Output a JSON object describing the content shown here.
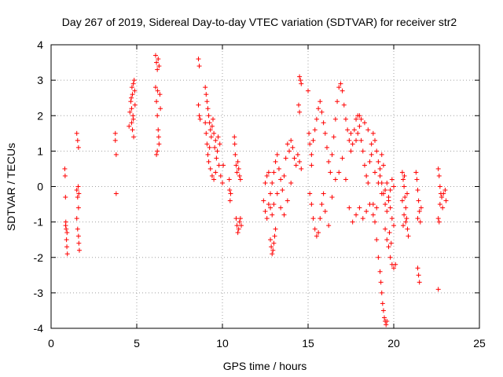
{
  "chart_data": {
    "type": "scatter",
    "title": "Day 267 of 2019, Sidereal Day-to-day VTEC variation (SDTVAR) for receiver str2",
    "xlabel": "GPS time / hours",
    "ylabel": "SDTVAR / TECUs",
    "xlim": [
      0,
      25
    ],
    "ylim": [
      -4,
      4
    ],
    "xticks": [
      "0",
      "5",
      "10",
      "15",
      "20",
      "25"
    ],
    "yticks": [
      "-4",
      "-3",
      "-2",
      "-1",
      "0",
      "1",
      "2",
      "3",
      "4"
    ],
    "grid": true,
    "marker": "+",
    "color": "#ff0000",
    "series": [
      {
        "name": "SDTVAR",
        "points": [
          [
            0.8,
            0.5
          ],
          [
            0.82,
            0.3
          ],
          [
            0.84,
            -0.3
          ],
          [
            0.86,
            -1.0
          ],
          [
            0.88,
            -1.2
          ],
          [
            0.9,
            -1.5
          ],
          [
            0.92,
            -1.7
          ],
          [
            0.95,
            -1.9
          ],
          [
            0.85,
            -1.1
          ],
          [
            0.93,
            -1.3
          ],
          [
            1.5,
            1.5
          ],
          [
            1.55,
            1.3
          ],
          [
            1.6,
            1.1
          ],
          [
            1.5,
            -0.1
          ],
          [
            1.55,
            -0.3
          ],
          [
            1.6,
            -0.6
          ],
          [
            1.5,
            -0.9
          ],
          [
            1.55,
            -1.2
          ],
          [
            1.6,
            -1.4
          ],
          [
            1.62,
            -1.6
          ],
          [
            1.65,
            -1.8
          ],
          [
            1.58,
            0.0
          ],
          [
            1.62,
            -0.2
          ],
          [
            3.75,
            1.5
          ],
          [
            3.75,
            1.3
          ],
          [
            3.8,
            0.9
          ],
          [
            3.8,
            -0.2
          ],
          [
            4.55,
            1.7
          ],
          [
            4.6,
            2.1
          ],
          [
            4.65,
            2.4
          ],
          [
            4.7,
            2.2
          ],
          [
            4.75,
            2.6
          ],
          [
            4.8,
            2.9
          ],
          [
            4.85,
            3.0
          ],
          [
            4.88,
            2.7
          ],
          [
            4.9,
            2.3
          ],
          [
            4.8,
            1.9
          ],
          [
            4.75,
            1.6
          ],
          [
            4.82,
            1.4
          ],
          [
            4.7,
            1.8
          ],
          [
            4.78,
            2.0
          ],
          [
            4.68,
            2.5
          ],
          [
            4.72,
            2.8
          ],
          [
            6.1,
            3.7
          ],
          [
            6.15,
            3.5
          ],
          [
            6.2,
            3.3
          ],
          [
            6.25,
            3.6
          ],
          [
            6.3,
            3.4
          ],
          [
            6.1,
            2.8
          ],
          [
            6.15,
            2.4
          ],
          [
            6.2,
            2.0
          ],
          [
            6.25,
            1.6
          ],
          [
            6.3,
            1.2
          ],
          [
            6.2,
            1.0
          ],
          [
            6.15,
            0.9
          ],
          [
            6.35,
            2.6
          ],
          [
            6.38,
            2.2
          ],
          [
            6.22,
            2.7
          ],
          [
            6.28,
            1.4
          ],
          [
            8.6,
            3.6
          ],
          [
            8.65,
            3.4
          ],
          [
            8.6,
            2.3
          ],
          [
            8.65,
            2.0
          ],
          [
            8.7,
            1.9
          ],
          [
            9.0,
            2.8
          ],
          [
            9.05,
            2.6
          ],
          [
            9.1,
            2.4
          ],
          [
            9.15,
            2.2
          ],
          [
            9.2,
            2.0
          ],
          [
            9.25,
            1.8
          ],
          [
            9.3,
            1.6
          ],
          [
            9.35,
            1.4
          ],
          [
            9.4,
            1.7
          ],
          [
            9.5,
            1.5
          ],
          [
            9.6,
            1.3
          ],
          [
            9.0,
            1.8
          ],
          [
            9.05,
            1.5
          ],
          [
            9.1,
            1.2
          ],
          [
            9.15,
            0.9
          ],
          [
            9.2,
            0.7
          ],
          [
            9.3,
            0.5
          ],
          [
            9.4,
            0.3
          ],
          [
            9.5,
            0.2
          ],
          [
            9.6,
            0.4
          ],
          [
            9.7,
            1.0
          ],
          [
            9.8,
            0.6
          ],
          [
            9.9,
            0.3
          ],
          [
            10.0,
            0.1
          ],
          [
            10.05,
            0.6
          ],
          [
            9.85,
            1.2
          ],
          [
            9.75,
            1.4
          ],
          [
            9.45,
            1.9
          ],
          [
            9.55,
            1.1
          ],
          [
            9.65,
            0.8
          ],
          [
            9.25,
            1.1
          ],
          [
            10.4,
            0.2
          ],
          [
            10.42,
            -0.1
          ],
          [
            10.45,
            -0.4
          ],
          [
            10.48,
            -0.2
          ],
          [
            10.7,
            1.4
          ],
          [
            10.72,
            1.2
          ],
          [
            10.75,
            0.9
          ],
          [
            10.8,
            0.6
          ],
          [
            10.85,
            0.4
          ],
          [
            10.9,
            0.7
          ],
          [
            10.95,
            0.5
          ],
          [
            11.0,
            0.3
          ],
          [
            11.05,
            0.2
          ],
          [
            10.8,
            -0.9
          ],
          [
            10.85,
            -1.1
          ],
          [
            10.9,
            -1.3
          ],
          [
            10.95,
            -1.2
          ],
          [
            11.0,
            -1.0
          ],
          [
            11.05,
            -0.9
          ],
          [
            11.1,
            -1.1
          ],
          [
            12.4,
            -0.4
          ],
          [
            12.5,
            -0.7
          ],
          [
            12.6,
            -0.9
          ],
          [
            12.7,
            -0.5
          ],
          [
            12.8,
            -0.2
          ],
          [
            12.9,
            0.1
          ],
          [
            13.0,
            0.4
          ],
          [
            13.1,
            0.7
          ],
          [
            13.2,
            0.9
          ],
          [
            13.3,
            0.5
          ],
          [
            13.4,
            0.2
          ],
          [
            13.5,
            -0.1
          ],
          [
            13.6,
            0.3
          ],
          [
            13.7,
            0.8
          ],
          [
            13.8,
            1.2
          ],
          [
            13.9,
            1.0
          ],
          [
            14.0,
            1.3
          ],
          [
            14.1,
            1.1
          ],
          [
            14.2,
            0.8
          ],
          [
            14.3,
            0.6
          ],
          [
            14.4,
            0.9
          ],
          [
            14.5,
            0.7
          ],
          [
            14.6,
            0.5
          ],
          [
            12.5,
            0.1
          ],
          [
            12.6,
            0.3
          ],
          [
            12.7,
            0.4
          ],
          [
            12.8,
            -0.6
          ],
          [
            12.9,
            -0.8
          ],
          [
            13.0,
            -0.5
          ],
          [
            13.2,
            -0.2
          ],
          [
            13.4,
            -0.6
          ],
          [
            13.6,
            -0.8
          ],
          [
            13.8,
            -0.4
          ],
          [
            14.0,
            0.1
          ],
          [
            12.8,
            -1.5
          ],
          [
            12.85,
            -1.7
          ],
          [
            12.9,
            -1.9
          ],
          [
            12.95,
            -1.8
          ],
          [
            13.0,
            -1.6
          ],
          [
            13.05,
            -1.4
          ],
          [
            13.1,
            -1.2
          ],
          [
            14.5,
            3.1
          ],
          [
            14.55,
            3.0
          ],
          [
            14.6,
            2.9
          ],
          [
            14.45,
            2.3
          ],
          [
            14.5,
            2.1
          ],
          [
            15.0,
            2.7
          ],
          [
            15.05,
            1.5
          ],
          [
            15.1,
            1.2
          ],
          [
            15.2,
            0.9
          ],
          [
            15.3,
            1.3
          ],
          [
            15.4,
            1.6
          ],
          [
            15.5,
            1.9
          ],
          [
            15.6,
            2.2
          ],
          [
            15.7,
            2.4
          ],
          [
            15.8,
            2.1
          ],
          [
            15.9,
            1.8
          ],
          [
            16.0,
            1.5
          ],
          [
            16.1,
            1.1
          ],
          [
            16.2,
            0.7
          ],
          [
            16.3,
            0.4
          ],
          [
            16.4,
            0.9
          ],
          [
            16.5,
            1.4
          ],
          [
            16.6,
            1.9
          ],
          [
            16.7,
            2.4
          ],
          [
            16.8,
            2.8
          ],
          [
            16.9,
            2.9
          ],
          [
            17.0,
            2.7
          ],
          [
            17.1,
            2.3
          ],
          [
            17.2,
            1.9
          ],
          [
            17.3,
            1.6
          ],
          [
            17.4,
            1.3
          ],
          [
            17.5,
            1.5
          ],
          [
            15.2,
            0.6
          ],
          [
            15.1,
            -0.2
          ],
          [
            15.2,
            -0.5
          ],
          [
            15.3,
            -0.9
          ],
          [
            15.4,
            -1.2
          ],
          [
            15.5,
            -1.4
          ],
          [
            15.6,
            -1.3
          ],
          [
            15.7,
            -0.9
          ],
          [
            15.8,
            -0.5
          ],
          [
            15.9,
            -0.2
          ],
          [
            16.0,
            -0.7
          ],
          [
            16.2,
            -1.1
          ],
          [
            16.4,
            -0.3
          ],
          [
            16.6,
            0.2
          ],
          [
            16.8,
            0.4
          ],
          [
            17.0,
            0.8
          ],
          [
            17.2,
            0.2
          ],
          [
            17.4,
            -0.6
          ],
          [
            17.6,
            -1.0
          ],
          [
            17.8,
            -0.8
          ],
          [
            18.0,
            -0.6
          ],
          [
            18.2,
            -0.9
          ],
          [
            18.4,
            -0.7
          ],
          [
            18.6,
            -0.5
          ],
          [
            18.8,
            -0.8
          ],
          [
            19.0,
            -0.6
          ],
          [
            17.5,
            1.0
          ],
          [
            17.6,
            1.2
          ],
          [
            17.7,
            1.6
          ],
          [
            17.8,
            1.9
          ],
          [
            17.9,
            2.0
          ],
          [
            18.0,
            1.7
          ],
          [
            18.1,
            1.3
          ],
          [
            18.2,
            1.0
          ],
          [
            18.3,
            0.6
          ],
          [
            18.4,
            0.3
          ],
          [
            18.5,
            0.1
          ],
          [
            18.6,
            0.7
          ],
          [
            18.7,
            1.2
          ],
          [
            18.8,
            1.5
          ],
          [
            18.9,
            1.3
          ],
          [
            19.0,
            1.0
          ],
          [
            19.1,
            0.7
          ],
          [
            19.2,
            0.5
          ],
          [
            19.3,
            0.9
          ],
          [
            19.4,
            0.6
          ],
          [
            17.8,
            1.3
          ],
          [
            17.9,
            1.5
          ],
          [
            18.0,
            2.0
          ],
          [
            18.1,
            1.9
          ],
          [
            18.3,
            1.8
          ],
          [
            18.5,
            1.6
          ],
          [
            18.7,
            0.9
          ],
          [
            18.9,
            0.4
          ],
          [
            19.1,
            0.1
          ],
          [
            19.3,
            -0.2
          ],
          [
            19.5,
            -0.1
          ],
          [
            19.6,
            0.1
          ],
          [
            19.7,
            -0.3
          ],
          [
            19.8,
            -0.6
          ],
          [
            19.9,
            -0.9
          ],
          [
            20.0,
            -1.1
          ],
          [
            18.8,
            -0.5
          ],
          [
            18.9,
            -1.0
          ],
          [
            19.0,
            -1.5
          ],
          [
            19.1,
            -2.0
          ],
          [
            19.2,
            -2.4
          ],
          [
            19.25,
            -2.7
          ],
          [
            19.3,
            -3.0
          ],
          [
            19.35,
            -3.3
          ],
          [
            19.4,
            -3.5
          ],
          [
            19.45,
            -3.7
          ],
          [
            19.5,
            -3.8
          ],
          [
            19.55,
            -3.9
          ],
          [
            19.6,
            -3.8
          ],
          [
            19.5,
            -1.2
          ],
          [
            19.6,
            -1.5
          ],
          [
            19.7,
            -1.7
          ],
          [
            19.8,
            -2.0
          ],
          [
            19.9,
            -2.2
          ],
          [
            20.0,
            -2.3
          ],
          [
            20.1,
            -2.2
          ],
          [
            19.75,
            -1.3
          ],
          [
            19.85,
            -1.6
          ],
          [
            19.2,
            0.3
          ],
          [
            19.3,
            0.1
          ],
          [
            19.4,
            -0.2
          ],
          [
            19.5,
            -0.5
          ],
          [
            19.6,
            -0.7
          ],
          [
            19.7,
            -0.4
          ],
          [
            19.8,
            -0.1
          ],
          [
            19.9,
            0.2
          ],
          [
            20.0,
            0.0
          ],
          [
            20.5,
            0.4
          ],
          [
            20.55,
            0.2
          ],
          [
            20.6,
            0.0
          ],
          [
            20.65,
            -0.3
          ],
          [
            20.7,
            -0.6
          ],
          [
            20.75,
            -0.9
          ],
          [
            20.8,
            -1.2
          ],
          [
            20.85,
            -1.4
          ],
          [
            20.6,
            -0.8
          ],
          [
            20.7,
            -1.0
          ],
          [
            20.5,
            -0.4
          ],
          [
            20.55,
            -1.1
          ],
          [
            20.62,
            0.3
          ],
          [
            20.78,
            -0.2
          ],
          [
            21.3,
            0.4
          ],
          [
            21.35,
            0.2
          ],
          [
            21.4,
            -0.1
          ],
          [
            21.45,
            -0.4
          ],
          [
            21.5,
            -0.7
          ],
          [
            21.55,
            -1.0
          ],
          [
            21.6,
            -0.6
          ],
          [
            21.4,
            -2.3
          ],
          [
            21.45,
            -2.5
          ],
          [
            21.5,
            -2.7
          ],
          [
            21.4,
            -0.9
          ],
          [
            22.6,
            0.5
          ],
          [
            22.65,
            0.3
          ],
          [
            22.7,
            0.0
          ],
          [
            22.75,
            -0.2
          ],
          [
            22.6,
            -0.9
          ],
          [
            22.65,
            -1.0
          ],
          [
            22.7,
            -0.5
          ],
          [
            22.8,
            -0.3
          ],
          [
            22.9,
            -0.2
          ],
          [
            23.0,
            -0.1
          ],
          [
            23.05,
            -0.4
          ],
          [
            22.85,
            -0.6
          ],
          [
            22.6,
            -2.9
          ]
        ]
      }
    ]
  }
}
